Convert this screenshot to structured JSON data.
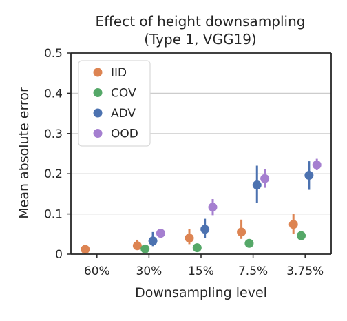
{
  "chart_data": {
    "type": "scatter",
    "title_lines": [
      "Effect of height downsampling",
      "(Type 1, VGG19)"
    ],
    "xlabel": "Downsampling level",
    "ylabel": "Mean absolute error",
    "categories": [
      "60%",
      "30%",
      "15%",
      "7.5%",
      "3.75%"
    ],
    "ylim": [
      0,
      0.5
    ],
    "yticks": [
      0,
      0.1,
      0.2,
      0.3,
      0.4,
      0.5
    ],
    "ytick_labels": [
      "0",
      "0.1",
      "0.2",
      "0.3",
      "0.4",
      "0.5"
    ],
    "grid": "horizontal",
    "legend_position": "top-left",
    "series": [
      {
        "name": "IID",
        "color": "#dd8452",
        "values": [
          0.012,
          0.021,
          0.04,
          0.055,
          0.074
        ],
        "err_low": [
          0.009,
          0.013,
          0.025,
          0.038,
          0.05
        ],
        "err_high": [
          0.015,
          0.036,
          0.062,
          0.086,
          0.101
        ]
      },
      {
        "name": "COV",
        "color": "#55a868",
        "values": [
          null,
          0.013,
          0.016,
          0.027,
          0.046
        ],
        "err_low": [
          null,
          0.01,
          0.013,
          0.024,
          0.042
        ],
        "err_high": [
          null,
          0.016,
          0.019,
          0.03,
          0.05
        ]
      },
      {
        "name": "ADV",
        "color": "#4c72b0",
        "values": [
          null,
          0.033,
          0.062,
          0.172,
          0.196
        ],
        "err_low": [
          null,
          0.02,
          0.04,
          0.127,
          0.16
        ],
        "err_high": [
          null,
          0.055,
          0.088,
          0.22,
          0.231
        ]
      },
      {
        "name": "OOD",
        "color": "#a57fd0",
        "values": [
          null,
          0.052,
          0.117,
          0.188,
          0.222
        ],
        "err_low": [
          null,
          0.04,
          0.097,
          0.165,
          0.209
        ],
        "err_high": [
          null,
          0.063,
          0.137,
          0.211,
          0.237
        ]
      }
    ]
  }
}
